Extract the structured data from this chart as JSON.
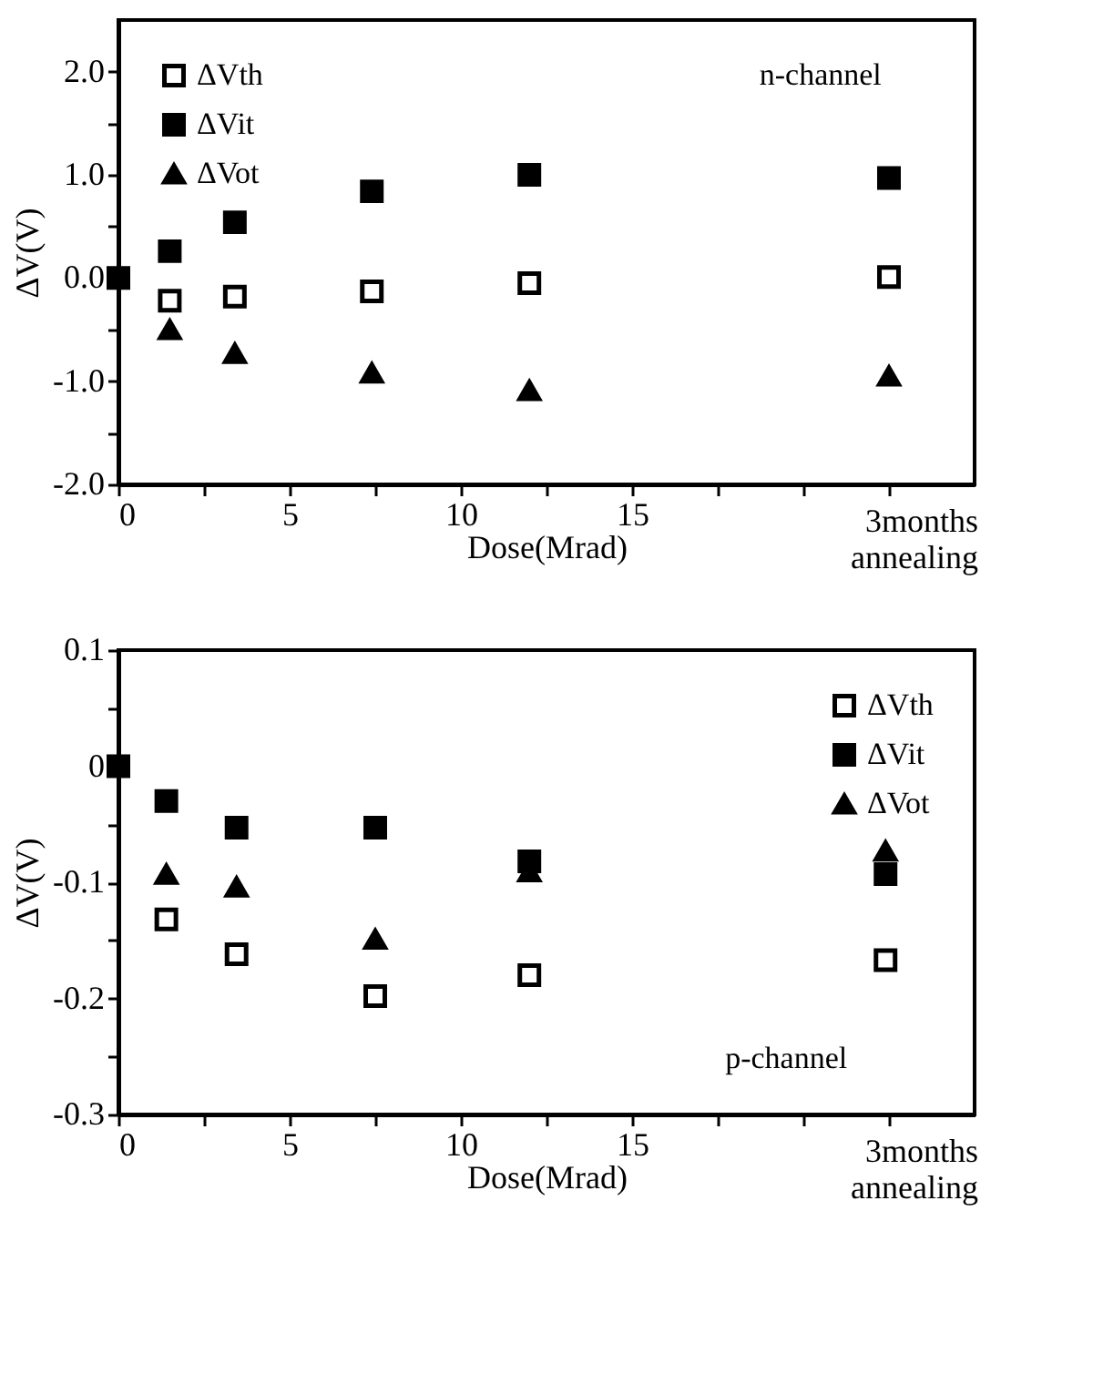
{
  "chart_data": [
    {
      "type": "scatter",
      "xlabel": "Dose(Mrad)",
      "ylabel": "ΔV(V)",
      "x": [
        0,
        1.5,
        3.4,
        7.4,
        12,
        22.5
      ],
      "xlim": [
        0,
        25
      ],
      "xticks": [
        0,
        {
          "value": 2.5,
          "label": null
        },
        5,
        {
          "value": 7.5,
          "label": null
        },
        10,
        {
          "value": 12.5,
          "label": null
        },
        15,
        {
          "value": 17.5,
          "label": null
        },
        {
          "value": 20,
          "label": null
        },
        {
          "value": 22.5,
          "label": null
        }
      ],
      "ylim": [
        -2,
        2.5
      ],
      "yticks": [
        {
          "value": -2,
          "label": "-2.0"
        },
        {
          "value": -1.5,
          "label": null
        },
        {
          "value": -1,
          "label": "-1.0"
        },
        {
          "value": -0.5,
          "label": null
        },
        {
          "value": 0,
          "label": "0.0"
        },
        {
          "value": 0.5,
          "label": null
        },
        {
          "value": 1,
          "label": "1.0"
        },
        {
          "value": 1.5,
          "label": null
        },
        {
          "value": 2,
          "label": "2.0"
        }
      ],
      "legend": "top left",
      "grid": false,
      "series": [
        {
          "name": "ΔVth",
          "color": "#000000",
          "marker": "square-open",
          "values": [
            null,
            -0.22,
            -0.18,
            -0.13,
            -0.05,
            0.01
          ]
        },
        {
          "name": "ΔVit",
          "color": "#000000",
          "marker": "square",
          "values": [
            0,
            0.26,
            0.54,
            0.84,
            1.0,
            0.97
          ]
        },
        {
          "name": "ΔVot",
          "color": "#000000",
          "marker": "triangle",
          "values": [
            null,
            -0.5,
            -0.73,
            -0.92,
            -1.09,
            -0.95
          ]
        }
      ],
      "annotations": [
        "n-channel",
        "3months annealing"
      ]
    },
    {
      "type": "scatter",
      "xlabel": "Dose(Mrad)",
      "ylabel": "ΔV(V)",
      "x": [
        0,
        1.4,
        3.45,
        7.5,
        12,
        22.4
      ],
      "xlim": [
        0,
        25
      ],
      "xticks": [
        0,
        {
          "value": 2.5,
          "label": null
        },
        5,
        {
          "value": 7.5,
          "label": null
        },
        10,
        {
          "value": 12.5,
          "label": null
        },
        15,
        {
          "value": 17.5,
          "label": null
        },
        {
          "value": 20,
          "label": null
        },
        {
          "value": 22.5,
          "label": null
        }
      ],
      "ylim": [
        -0.3,
        0.1
      ],
      "yticks": [
        -0.3,
        {
          "value": -0.25,
          "label": null
        },
        -0.2,
        {
          "value": -0.15,
          "label": null
        },
        -0.1,
        {
          "value": -0.05,
          "label": null
        },
        0,
        {
          "value": 0.05,
          "label": null
        },
        0.1
      ],
      "legend": "top right",
      "grid": false,
      "series": [
        {
          "name": "ΔVth",
          "color": "#000000",
          "marker": "square-open",
          "values": [
            null,
            -0.132,
            -0.162,
            -0.198,
            -0.18,
            -0.167
          ]
        },
        {
          "name": "ΔVit",
          "color": "#000000",
          "marker": "square",
          "values": [
            0,
            -0.03,
            -0.053,
            -0.053,
            -0.082,
            -0.093
          ]
        },
        {
          "name": "ΔVot",
          "color": "#000000",
          "marker": "triangle",
          "values": [
            null,
            -0.093,
            -0.104,
            -0.149,
            -0.091,
            -0.073
          ]
        }
      ],
      "annotations": [
        "p-channel",
        "3months annealing"
      ]
    }
  ]
}
